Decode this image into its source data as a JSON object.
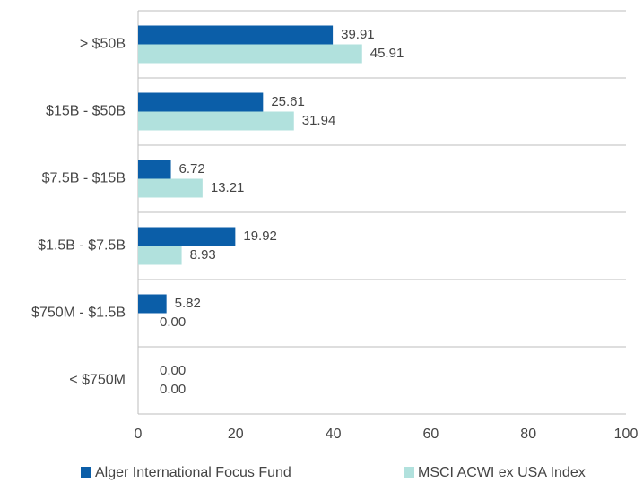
{
  "chart_data": {
    "type": "bar",
    "orientation": "horizontal",
    "categories": [
      "> $50B",
      "$15B - $50B",
      "$7.5B - $15B",
      "$1.5B - $7.5B",
      "$750M - $1.5B",
      "< $750M"
    ],
    "series": [
      {
        "name": "Alger International Focus Fund",
        "color": "#0b5ea8",
        "values": [
          39.91,
          25.61,
          6.72,
          19.92,
          5.82,
          0
        ],
        "value_labels": [
          "39.91",
          "25.61",
          "6.72",
          "19.92",
          "5.82",
          "0.00"
        ]
      },
      {
        "name": "MSCI ACWI ex USA Index",
        "color": "#b1e1dd",
        "values": [
          45.91,
          31.94,
          13.21,
          8.93,
          0,
          0
        ],
        "value_labels": [
          "45.91",
          "31.94",
          "13.21",
          "8.93",
          "0.00",
          "0.00"
        ]
      }
    ],
    "xlim": [
      0,
      100
    ],
    "xticks": [
      0,
      20,
      40,
      60,
      80,
      100
    ]
  }
}
